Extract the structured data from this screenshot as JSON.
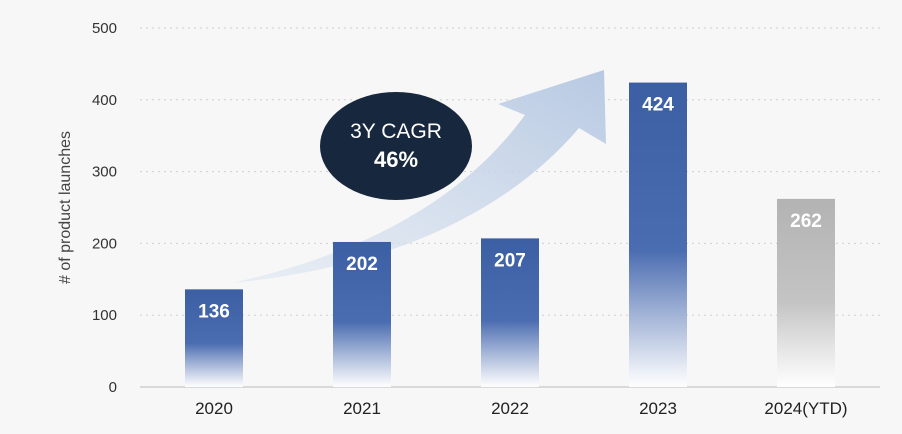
{
  "chart_data": {
    "type": "bar",
    "categories": [
      "2020",
      "2021",
      "2022",
      "2023",
      "2024(YTD)"
    ],
    "values": [
      136,
      202,
      207,
      424,
      262
    ],
    "data_labels": [
      "136",
      "202",
      "207",
      "424",
      "262"
    ],
    "ylabel": "# of product launches",
    "xlabel": "",
    "ylim": [
      0,
      500
    ],
    "yticks": [
      0,
      100,
      200,
      300,
      400,
      500
    ],
    "ytick_labels": [
      "0",
      "100",
      "200",
      "300",
      "400",
      "500"
    ],
    "grid": true,
    "bar_colors": [
      "#3f63a8",
      "#3f63a8",
      "#3f63a8",
      "#3f63a8",
      "#b8b8b8"
    ],
    "annotation": {
      "line1": "3Y CAGR",
      "line2": "46%",
      "bubble_color": "#17273d",
      "arrow_color": "#c7d5e8"
    }
  }
}
